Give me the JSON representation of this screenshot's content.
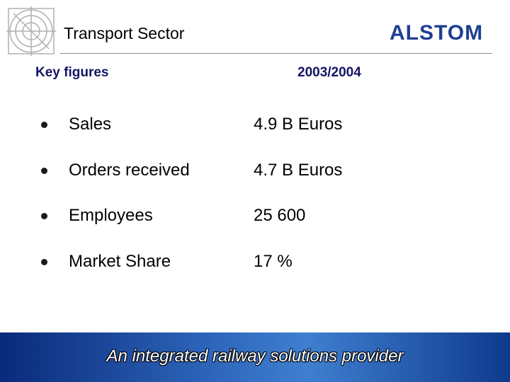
{
  "header": {
    "title": "Transport Sector",
    "logo": "ALSTOM"
  },
  "table": {
    "columns": [
      "Key figures",
      "2003/2004"
    ],
    "rows": [
      [
        "Sales",
        "4.9 B Euros"
      ],
      [
        "Orders received",
        "4.7 B Euros"
      ],
      [
        "Employees",
        "25 600"
      ],
      [
        "Market Share",
        "17 %"
      ]
    ]
  },
  "footer": {
    "tagline": "An integrated railway solutions provider"
  }
}
